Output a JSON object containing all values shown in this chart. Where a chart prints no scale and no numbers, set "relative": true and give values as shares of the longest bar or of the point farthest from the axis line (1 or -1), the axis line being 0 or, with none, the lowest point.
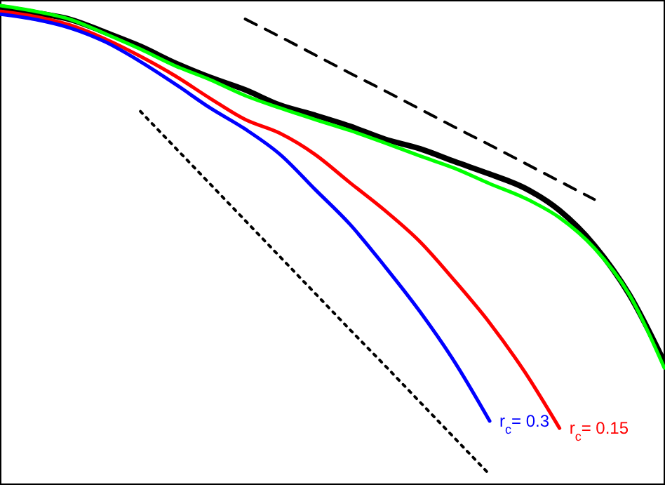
{
  "chart_data": {
    "type": "line",
    "relative": true,
    "legend": false,
    "marker": "none",
    "categories": [
      null,
      null,
      null,
      null,
      null,
      null,
      null,
      null,
      null,
      null,
      null,
      null,
      null,
      null,
      null,
      null,
      null,
      null,
      null,
      null
    ],
    "series": [
      {
        "color": "#000000",
        "values": [
          0.997,
          0.985,
          0.971,
          0.944,
          0.915,
          0.88,
          0.85,
          0.824,
          0.792,
          0.771,
          0.748,
          0.721,
          0.701,
          0.674,
          0.648,
          0.619,
          0.572,
          0.499,
          0.396,
          0.255
        ]
      },
      {
        "name": "r$_{c}$= 0.15",
        "color": "#ff0000",
        "values": [
          0.988,
          0.977,
          0.959,
          0.93,
          0.894,
          0.853,
          0.806,
          0.762,
          0.733,
          0.689,
          0.63,
          0.572,
          0.507,
          0.425,
          0.337,
          0.235,
          0.117,
          null,
          null,
          null
        ]
      },
      {
        "name": "r$_{c}$= 0.3",
        "color": "#0000ff",
        "values": [
          0.982,
          0.971,
          0.953,
          0.924,
          0.883,
          0.836,
          0.786,
          0.742,
          0.689,
          0.616,
          0.543,
          0.455,
          0.361,
          0.255,
          0.132,
          null,
          null,
          null,
          null,
          null
        ]
      },
      {
        "color": "#00ff00",
        "values": [
          1.0,
          0.988,
          0.971,
          0.941,
          0.909,
          0.874,
          0.845,
          0.812,
          0.786,
          0.762,
          0.739,
          0.713,
          0.686,
          0.66,
          0.628,
          0.598,
          0.557,
          0.493,
          0.396,
          0.243
        ]
      },
      {
        "color": "#000000",
        "line_style": "dashed",
        "values": [
          null,
          null,
          null,
          null,
          null,
          null,
          null,
          0.972,
          0.935,
          0.897,
          0.859,
          0.822,
          0.784,
          0.746,
          0.709,
          0.671,
          0.633,
          0.595,
          null,
          null
        ]
      },
      {
        "color": "#000000",
        "line_style": "dotted",
        "values": [
          null,
          null,
          null,
          null,
          0.779,
          0.703,
          0.627,
          0.551,
          0.475,
          0.399,
          0.323,
          0.248,
          0.172,
          0.096,
          0.02,
          null,
          null,
          null,
          null,
          null
        ]
      }
    ]
  }
}
